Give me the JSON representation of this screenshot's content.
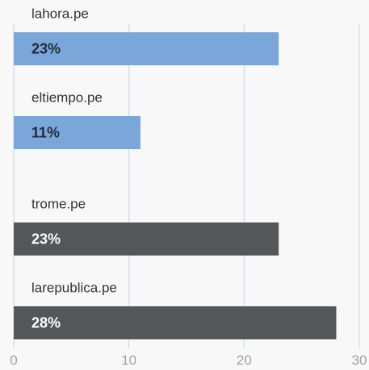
{
  "chart_data": {
    "type": "bar",
    "orientation": "horizontal",
    "categories": [
      "lahora.pe",
      "eltiempo.pe",
      "trome.pe",
      "larepublica.pe"
    ],
    "values": [
      23,
      11,
      23,
      28
    ],
    "value_labels": [
      "23%",
      "11%",
      "23%",
      "28%"
    ],
    "colors": [
      "#7ba6da",
      "#7ba6da",
      "#545659",
      "#545659"
    ],
    "xlim": [
      0,
      30
    ],
    "xticks": [
      0,
      10,
      20,
      30
    ],
    "grid": true
  }
}
